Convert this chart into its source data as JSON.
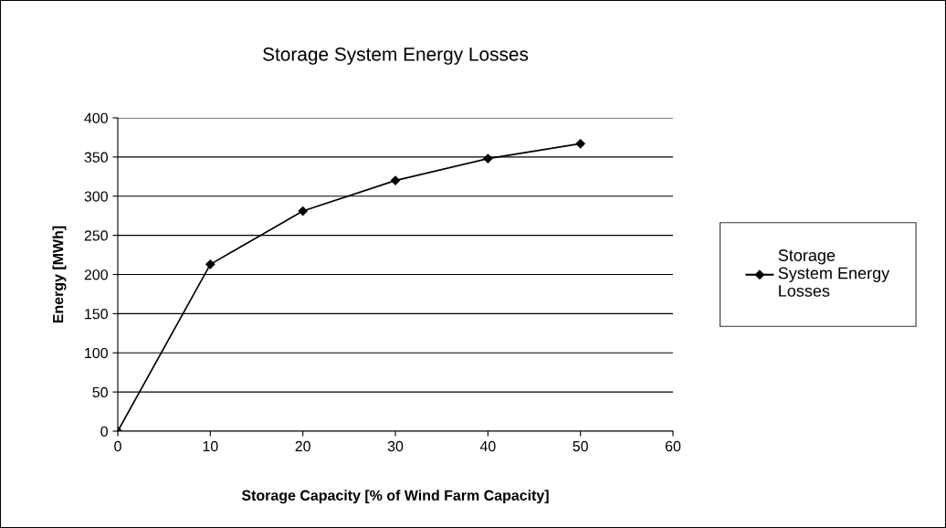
{
  "chart_data": {
    "type": "line",
    "title": "Storage System Energy Losses",
    "xlabel": "Storage Capacity [% of Wind Farm Capacity]",
    "ylabel": "Energy [MWh]",
    "x": [
      0,
      10,
      20,
      30,
      40,
      50
    ],
    "series": [
      {
        "name": "Storage System Energy Losses",
        "color": "#000000",
        "values": [
          0,
          213,
          281,
          320,
          348,
          367
        ]
      }
    ],
    "xlim": [
      0,
      60
    ],
    "xticks": [
      0,
      10,
      20,
      30,
      40,
      50,
      60
    ],
    "ylim": [
      0,
      400
    ],
    "yticks": [
      0,
      50,
      100,
      150,
      200,
      250,
      300,
      350,
      400
    ],
    "grid": "y",
    "legend": "right",
    "marker": "diamond",
    "line_style": "solid"
  }
}
